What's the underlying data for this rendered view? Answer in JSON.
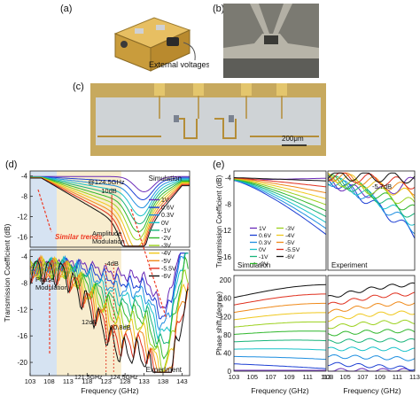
{
  "labels": {
    "a": "(a)",
    "b": "(b)",
    "c": "(c)",
    "d": "(d)",
    "e": "(e)"
  },
  "photo_a": {
    "caption": "External voltages"
  },
  "photo_c": {
    "scale_bar": "200μm"
  },
  "colors": {
    "gold": "#c9a44a",
    "board": "#d9c9a8",
    "pcb_bg": "#d3b469",
    "phase_region": "#c5d7ec",
    "amp_region": "#f6e7bf",
    "arrow": "#ee3a24"
  },
  "voltage_series": [
    {
      "name": "1V",
      "color": "#6a2ab8"
    },
    {
      "name": "0.6V",
      "color": "#1c3fd4"
    },
    {
      "name": "0.3V",
      "color": "#1f8fe0"
    },
    {
      "name": "0V",
      "color": "#19c2c9"
    },
    {
      "name": "-1V",
      "color": "#18b47a"
    },
    {
      "name": "-2V",
      "color": "#2fb72b"
    },
    {
      "name": "-3V",
      "color": "#9bd11d"
    },
    {
      "name": "-4V",
      "color": "#f0c81d"
    },
    {
      "name": "-5V",
      "color": "#f08a1a"
    },
    {
      "name": "-5.5V",
      "color": "#e0301e"
    },
    {
      "name": "-6V",
      "color": "#111111"
    }
  ],
  "panel_d": {
    "ylabel": "Transmission Coefficient (dB)",
    "xlabel": "Frequency (GHz)",
    "x_ticks": [
      "103",
      "108",
      "113",
      "118",
      "123",
      "128",
      "133",
      "138",
      "143"
    ],
    "top_y_ticks": [
      "-4",
      "-8",
      "-12",
      "-16"
    ],
    "bottom_y_ticks": [
      "-4",
      "-8",
      "-12",
      "-16",
      "-20"
    ],
    "top_tag": "Simulation",
    "bottom_tag": "Experiment",
    "ann_freq": "@124.5GHz",
    "ann_10db": "10dB",
    "similar": "Similar trends",
    "phase_mod": "Phase\nModulation",
    "amp_mod": "Amplitude\nModulation",
    "ann_4db": "-4dB",
    "ann_12db": "12dB",
    "ann_108db": "10.8dB",
    "ann_1215": "121.5GHz",
    "ann_1245": "124.5GHz"
  },
  "panel_e": {
    "ylabel_top": "Transmission Coefficient (dB)",
    "ylabel_bottom": "Phase shift (degree)",
    "xlabel": "Frequency (GHz)",
    "x_ticks": [
      "103",
      "105",
      "107",
      "109",
      "111",
      "113"
    ],
    "top_y_ticks": [
      "-4",
      "-8",
      "-12",
      "-16"
    ],
    "bottom_y_ticks": [
      "200",
      "160",
      "120",
      "80",
      "40",
      "0"
    ],
    "sim_tag": "Simulation",
    "exp_tag": "Experiment",
    "ann_57": "-5.7dB"
  },
  "chart_data": [
    {
      "type": "line",
      "title": "",
      "xlabel": "Frequency (GHz)",
      "ylabel": "Transmission Coefficient (dB)",
      "xlim": [
        103,
        145
      ],
      "ylim": [
        -18,
        -3
      ],
      "x": [
        103,
        108,
        113,
        118,
        123,
        128,
        133,
        138,
        143
      ],
      "series": [
        {
          "name": "1V",
          "values": [
            -4.2,
            -4.3,
            -4.4,
            -4.5,
            -4.8,
            -5.2,
            -6.5,
            -8,
            -5.5
          ]
        },
        {
          "name": "-1V",
          "values": [
            -4.5,
            -5.2,
            -6.5,
            -8,
            -9.5,
            -11,
            -13,
            -10,
            -6
          ]
        },
        {
          "name": "-6V",
          "values": [
            -5,
            -6.5,
            -9,
            -12,
            -14.5,
            -15,
            -13.5,
            -10.5,
            -6.5
          ]
        }
      ]
    },
    {
      "type": "line",
      "title": "",
      "xlabel": "Frequency (GHz)",
      "ylabel": "Transmission Coefficient (dB)",
      "xlim": [
        103,
        145
      ],
      "ylim": [
        -22,
        -3
      ],
      "x": [
        103,
        108,
        113,
        118,
        123,
        128,
        133,
        138,
        143
      ],
      "series": [
        {
          "name": "1V",
          "values": [
            -6,
            -5.5,
            -4.5,
            -4.2,
            -4,
            -5,
            -7,
            -12,
            -8
          ]
        },
        {
          "name": "-1V",
          "values": [
            -6.5,
            -6,
            -7,
            -9,
            -10,
            -11,
            -14,
            -17,
            -10
          ]
        },
        {
          "name": "-6V",
          "values": [
            -7,
            -8,
            -11,
            -15,
            -17,
            -18,
            -17,
            -19,
            -11
          ]
        }
      ]
    }
  ]
}
